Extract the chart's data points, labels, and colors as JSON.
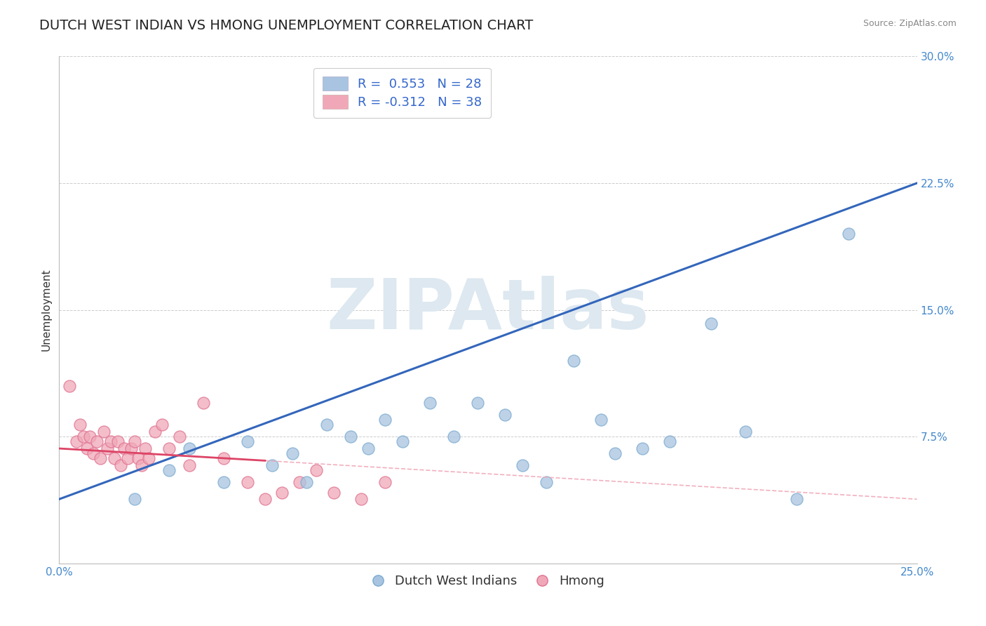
{
  "title": "DUTCH WEST INDIAN VS HMONG UNEMPLOYMENT CORRELATION CHART",
  "source": "Source: ZipAtlas.com",
  "ylabel": "Unemployment",
  "xlim": [
    0.0,
    0.25
  ],
  "ylim": [
    0.0,
    0.3
  ],
  "yticks": [
    0.075,
    0.15,
    0.225,
    0.3
  ],
  "yticklabels": [
    "7.5%",
    "15.0%",
    "22.5%",
    "30.0%"
  ],
  "blue_R": 0.553,
  "blue_N": 28,
  "pink_R": -0.312,
  "pink_N": 38,
  "blue_color": "#a8c4e0",
  "blue_edge_color": "#7aaad0",
  "blue_line_color": "#3366bb",
  "pink_color": "#f0a8b8",
  "pink_edge_color": "#e07090",
  "pink_line_color": "#dd4466",
  "watermark_text": "ZIPAtlas",
  "watermark_color": "#dde8f0",
  "blue_points_x": [
    0.022,
    0.032,
    0.038,
    0.048,
    0.055,
    0.062,
    0.068,
    0.072,
    0.078,
    0.085,
    0.09,
    0.095,
    0.1,
    0.108,
    0.115,
    0.122,
    0.13,
    0.135,
    0.142,
    0.15,
    0.158,
    0.162,
    0.17,
    0.178,
    0.19,
    0.2,
    0.215,
    0.23
  ],
  "blue_points_y": [
    0.038,
    0.055,
    0.068,
    0.048,
    0.072,
    0.058,
    0.065,
    0.048,
    0.082,
    0.075,
    0.068,
    0.085,
    0.072,
    0.095,
    0.075,
    0.095,
    0.088,
    0.058,
    0.048,
    0.12,
    0.085,
    0.065,
    0.068,
    0.072,
    0.142,
    0.078,
    0.038,
    0.195
  ],
  "pink_points_x": [
    0.003,
    0.005,
    0.006,
    0.007,
    0.008,
    0.009,
    0.01,
    0.011,
    0.012,
    0.013,
    0.014,
    0.015,
    0.016,
    0.017,
    0.018,
    0.019,
    0.02,
    0.021,
    0.022,
    0.023,
    0.024,
    0.025,
    0.026,
    0.028,
    0.03,
    0.032,
    0.035,
    0.038,
    0.042,
    0.048,
    0.055,
    0.06,
    0.065,
    0.07,
    0.075,
    0.08,
    0.088,
    0.095
  ],
  "pink_points_y": [
    0.105,
    0.072,
    0.082,
    0.075,
    0.068,
    0.075,
    0.065,
    0.072,
    0.062,
    0.078,
    0.068,
    0.072,
    0.062,
    0.072,
    0.058,
    0.068,
    0.062,
    0.068,
    0.072,
    0.062,
    0.058,
    0.068,
    0.062,
    0.078,
    0.082,
    0.068,
    0.075,
    0.058,
    0.095,
    0.062,
    0.048,
    0.038,
    0.042,
    0.048,
    0.055,
    0.042,
    0.038,
    0.048
  ],
  "blue_line_x0": 0.0,
  "blue_line_y0": 0.038,
  "blue_line_x1": 0.25,
  "blue_line_y1": 0.225,
  "pink_line_x0": 0.0,
  "pink_line_y0": 0.068,
  "pink_line_x1": 0.25,
  "pink_line_y1": 0.038,
  "background_color": "#ffffff",
  "grid_color": "#cccccc",
  "title_fontsize": 14,
  "axis_label_fontsize": 11,
  "tick_fontsize": 11,
  "legend_fontsize": 13
}
